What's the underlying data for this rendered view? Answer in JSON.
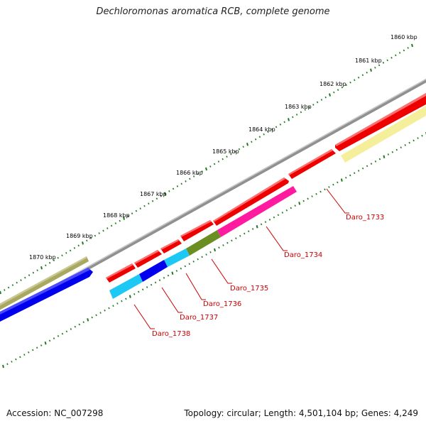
{
  "title": "Dechloromonas aromatica RCB, complete genome",
  "footer": {
    "accession": "Accession: NC_007298",
    "summary": "Topology: circular; Length: 4,501,104 bp; Genes: 4,249"
  },
  "colors": {
    "background": "#ffffff",
    "backbone": "#888888",
    "ticks": "#1f7a1f",
    "gene_label": "#cc0000"
  },
  "ruler": {
    "unit": "kbp",
    "labels": [
      "1860 kbp",
      "1861 kbp",
      "1862 kbp",
      "1863 kbp",
      "1864 kbp",
      "1865 kbp",
      "1866 kbp",
      "1867 kbp",
      "1868 kbp",
      "1869 kbp",
      "1870 kbp"
    ]
  },
  "genes": [
    {
      "name": "Daro_1733",
      "color": "#f5ef9c"
    },
    {
      "name": "Daro_1734",
      "color": "#ff1aa0"
    },
    {
      "name": "Daro_1735",
      "color": "#6b8e23"
    },
    {
      "name": "Daro_1736",
      "color": "#1ec8f5"
    },
    {
      "name": "Daro_1737",
      "color": "#0000ee"
    },
    {
      "name": "Daro_1738",
      "color": "#1ec8f5"
    }
  ],
  "tracks": {
    "forward_color": "#ee0000",
    "reverse_left_colors": [
      "#a8a860",
      "#0000ee"
    ]
  }
}
